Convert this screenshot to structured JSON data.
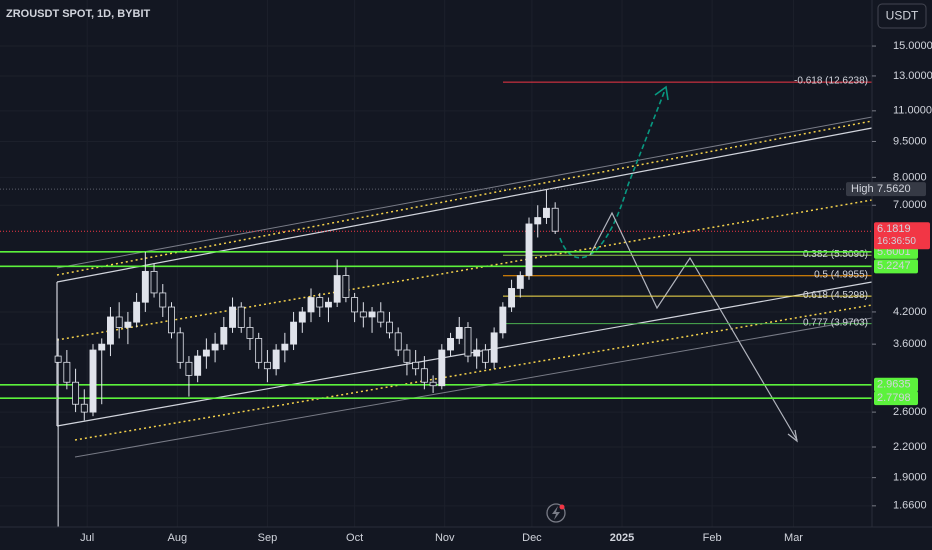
{
  "chart_data": {
    "type": "candlestick",
    "title": "ZROUSDT SPOT, 1D, BYBIT",
    "currency": "USDT",
    "x": [
      -10,
      -7,
      -4,
      -1,
      2,
      5,
      8,
      11,
      14,
      17,
      20,
      23,
      26,
      29,
      32,
      35,
      38,
      41,
      44,
      47,
      50,
      53,
      56,
      59,
      62,
      65,
      68,
      71,
      74,
      77,
      80,
      83,
      86,
      89,
      92,
      95,
      98,
      101,
      104,
      107,
      110,
      113,
      116,
      119,
      122,
      125,
      128,
      131,
      134,
      137,
      140,
      143,
      146,
      149,
      152,
      155,
      158,
      161
    ],
    "open": [
      3.4,
      3.3,
      3.0,
      2.7,
      2.6,
      3.5,
      3.6,
      4.1,
      3.9,
      4.0,
      4.4,
      5.1,
      4.6,
      4.3,
      3.8,
      3.3,
      3.1,
      3.4,
      3.5,
      3.6,
      3.9,
      4.3,
      3.9,
      3.7,
      3.3,
      3.2,
      3.5,
      3.6,
      4.0,
      4.2,
      4.5,
      4.3,
      4.4,
      5.0,
      4.5,
      4.2,
      4.1,
      4.2,
      4.0,
      3.8,
      3.5,
      3.3,
      3.2,
      3.0,
      2.95,
      3.5,
      3.7,
      3.9,
      3.4,
      3.5,
      3.3,
      3.8,
      4.3,
      4.7,
      5.0,
      6.4,
      6.6,
      6.9
    ],
    "high": [
      3.7,
      3.5,
      3.2,
      2.9,
      3.6,
      3.7,
      4.3,
      4.4,
      4.2,
      4.6,
      5.6,
      5.3,
      4.8,
      4.4,
      3.9,
      3.4,
      3.5,
      3.7,
      3.8,
      4.1,
      4.5,
      4.4,
      4.1,
      3.8,
      3.5,
      3.6,
      3.8,
      4.2,
      4.3,
      4.7,
      4.6,
      4.5,
      5.4,
      5.2,
      4.6,
      4.4,
      4.3,
      4.4,
      4.2,
      3.9,
      3.6,
      3.5,
      3.4,
      3.1,
      3.6,
      3.8,
      4.1,
      4.0,
      3.7,
      3.6,
      3.9,
      4.4,
      4.9,
      5.1,
      6.6,
      7.0,
      7.562,
      7.1
    ],
    "low": [
      1.5,
      2.9,
      2.6,
      2.5,
      2.55,
      2.7,
      3.4,
      3.7,
      3.6,
      3.9,
      4.2,
      4.5,
      4.1,
      3.7,
      3.2,
      2.8,
      3.0,
      3.2,
      3.3,
      3.5,
      3.8,
      3.8,
      3.5,
      3.2,
      3.0,
      3.1,
      3.3,
      3.5,
      3.8,
      4.0,
      4.1,
      4.0,
      4.3,
      4.4,
      4.0,
      3.9,
      3.8,
      3.9,
      3.7,
      3.4,
      3.1,
      3.1,
      2.9,
      2.85,
      2.9,
      3.4,
      3.6,
      3.3,
      3.2,
      3.2,
      3.2,
      3.7,
      4.2,
      4.5,
      4.9,
      6.0,
      6.4,
      6.1
    ],
    "close": [
      3.3,
      3.0,
      2.7,
      2.6,
      3.5,
      3.6,
      4.1,
      3.9,
      4.0,
      4.4,
      5.1,
      4.6,
      4.3,
      3.8,
      3.3,
      3.1,
      3.4,
      3.5,
      3.6,
      3.9,
      4.3,
      3.9,
      3.7,
      3.3,
      3.2,
      3.5,
      3.6,
      4.0,
      4.2,
      4.5,
      4.3,
      4.4,
      5.0,
      4.5,
      4.2,
      4.1,
      4.2,
      4.0,
      3.8,
      3.5,
      3.3,
      3.2,
      3.0,
      2.95,
      3.5,
      3.7,
      3.9,
      3.4,
      3.5,
      3.3,
      3.8,
      4.3,
      4.7,
      5.0,
      6.4,
      6.6,
      6.9,
      6.1819
    ],
    "up_color": "#089981",
    "down_color": "#f23645",
    "xlim": [
      -30,
      270
    ],
    "xticks": [
      {
        "value": 0,
        "label": "Jul"
      },
      {
        "value": 31,
        "label": "Aug"
      },
      {
        "value": 62,
        "label": "Sep"
      },
      {
        "value": 92,
        "label": "Oct"
      },
      {
        "value": 123,
        "label": "Nov"
      },
      {
        "value": 153,
        "label": "Dec"
      },
      {
        "value": 184,
        "label": "2025"
      },
      {
        "value": 215,
        "label": "Feb"
      },
      {
        "value": 243,
        "label": "Mar"
      }
    ],
    "ylim": [
      1.5,
      18.7
    ],
    "log_scale": true,
    "yticks": [
      {
        "value": 15,
        "label": "15.0000"
      },
      {
        "value": 13,
        "label": "13.0000"
      },
      {
        "value": 11,
        "label": "11.0000"
      },
      {
        "value": 9.5,
        "label": "9.5000"
      },
      {
        "value": 8,
        "label": "8.0000"
      },
      {
        "value": 7,
        "label": "7.0000"
      },
      {
        "value": 4.2,
        "label": "4.2000"
      },
      {
        "value": 3.6,
        "label": "3.6000"
      },
      {
        "value": 2.6,
        "label": "2.6000"
      },
      {
        "value": 2.2,
        "label": "2.2000"
      },
      {
        "value": 1.9,
        "label": "1.9000"
      },
      {
        "value": 1.66,
        "label": "1.6600"
      }
    ],
    "high_marker": {
      "label": "High",
      "value": 7.562,
      "value_label": "7.5620"
    },
    "last_price": {
      "value": 6.1819,
      "countdown": "16:36:50",
      "color": "#f23645"
    },
    "level_color": "#5cf23c",
    "levels": [
      {
        "value": 5.6001
      },
      {
        "value": 5.2247
      },
      {
        "value": 2.9635
      },
      {
        "value": 2.7798
      }
    ],
    "fib_levels": [
      {
        "label": "-0.618 (12.6238)",
        "value": 12.6238,
        "color": "#f23645"
      },
      {
        "label": "0.382 (5.5090)",
        "value": 5.509,
        "color": "#8bc34a"
      },
      {
        "label": "0.5 (4.9955)",
        "value": 4.9955,
        "color": "#ff9800"
      },
      {
        "label": "0.618 (4.5298)",
        "value": 4.5298,
        "color": "#fbe34d"
      },
      {
        "label": "0.777 (3.9703)",
        "value": 3.9703,
        "color": "#4caf50"
      }
    ]
  }
}
